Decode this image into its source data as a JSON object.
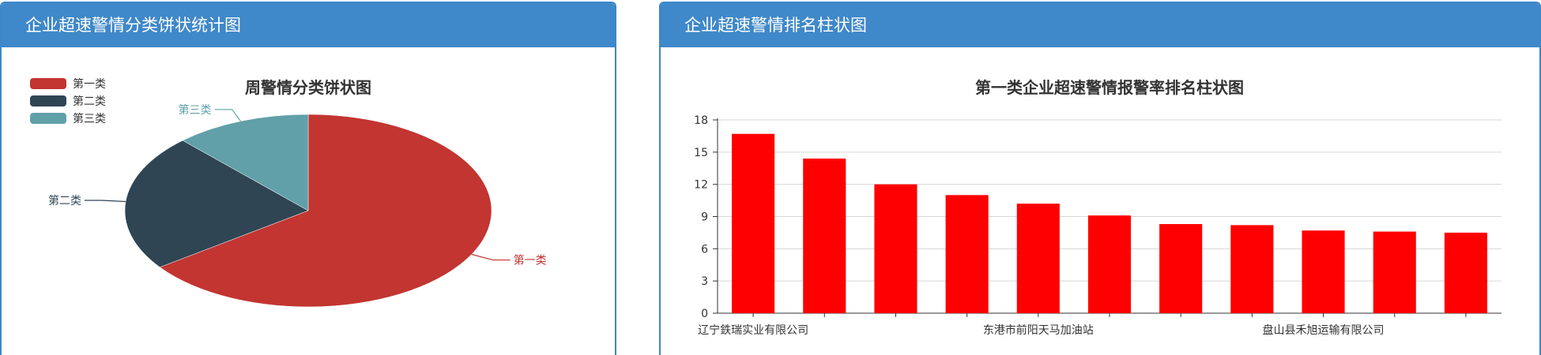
{
  "left_panel": {
    "header": "企业超速警情分类饼状统计图"
  },
  "right_panel": {
    "header": "企业超速警情排名柱状图"
  },
  "chart_data": [
    {
      "type": "pie",
      "title": "周警情分类饼状图",
      "legend_position": "top-left",
      "slices": [
        {
          "name": "第一类",
          "value": 65,
          "color": "#c23531"
        },
        {
          "name": "第二类",
          "value": 23,
          "color": "#2f4554"
        },
        {
          "name": "第三类",
          "value": 12,
          "color": "#61a0a8"
        }
      ]
    },
    {
      "type": "bar",
      "title": "第一类企业超速警情报警率排名柱状图",
      "color": "#ff0000",
      "ylim": [
        0,
        18
      ],
      "yticks": [
        0,
        3,
        6,
        9,
        12,
        15,
        18
      ],
      "grid": true,
      "categories": [
        "辽宁鉄瑞实业有限公司",
        "",
        "",
        "",
        "东港市前阳天马加油站",
        "",
        "",
        "",
        "盘山县禾旭运输有限公司",
        "",
        ""
      ],
      "values": [
        16.7,
        14.4,
        12.0,
        11.0,
        10.2,
        9.1,
        8.3,
        8.2,
        7.7,
        7.6,
        7.5
      ]
    }
  ]
}
